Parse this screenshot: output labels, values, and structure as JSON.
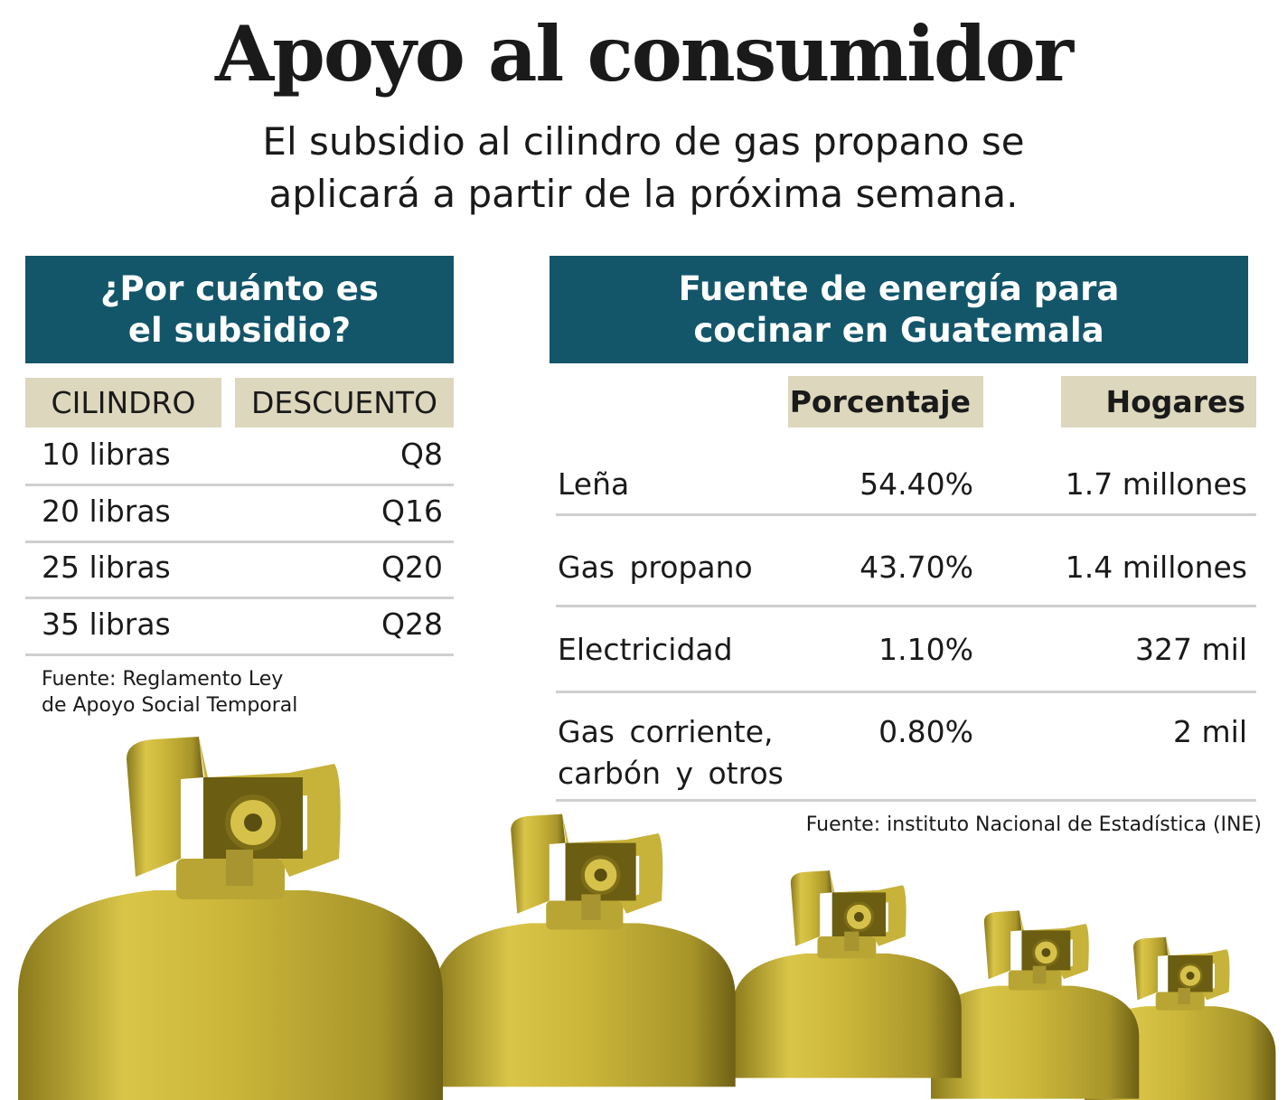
{
  "header": {
    "title": "Apoyo al consumidor",
    "subtitle": [
      "El subsidio al cilindro de gas propano se",
      "aplicará a partir de la próxima semana."
    ]
  },
  "subsidy": {
    "title": [
      "¿Por cuánto es",
      "el subsidio?"
    ],
    "columns": [
      "CILINDRO",
      "DESCUENTO"
    ],
    "rows": [
      [
        "10 libras",
        "Q8"
      ],
      [
        "20 libras",
        "Q16"
      ],
      [
        "25 libras",
        "Q20"
      ],
      [
        "35 libras",
        "Q28"
      ]
    ],
    "source": [
      "Fuente: Reglamento Ley",
      "de Apoyo Social Temporal"
    ]
  },
  "energy": {
    "title": [
      "Fuente de energía para",
      "cocinar en Guatemala"
    ],
    "columns": [
      "Porcentaje",
      "Hogares"
    ],
    "rows": [
      [
        "Leña",
        "54.40%",
        "1.7 millones"
      ],
      [
        "Gas propano",
        "43.70%",
        "1.4 millones"
      ],
      [
        "Electricidad",
        "1.10%",
        "327 mil"
      ],
      [
        "Gas  corriente, carbón y otros",
        "0.80%",
        "2 mil"
      ]
    ],
    "source": "Fuente: instituto Nacional de Estadística (INE)"
  }
}
